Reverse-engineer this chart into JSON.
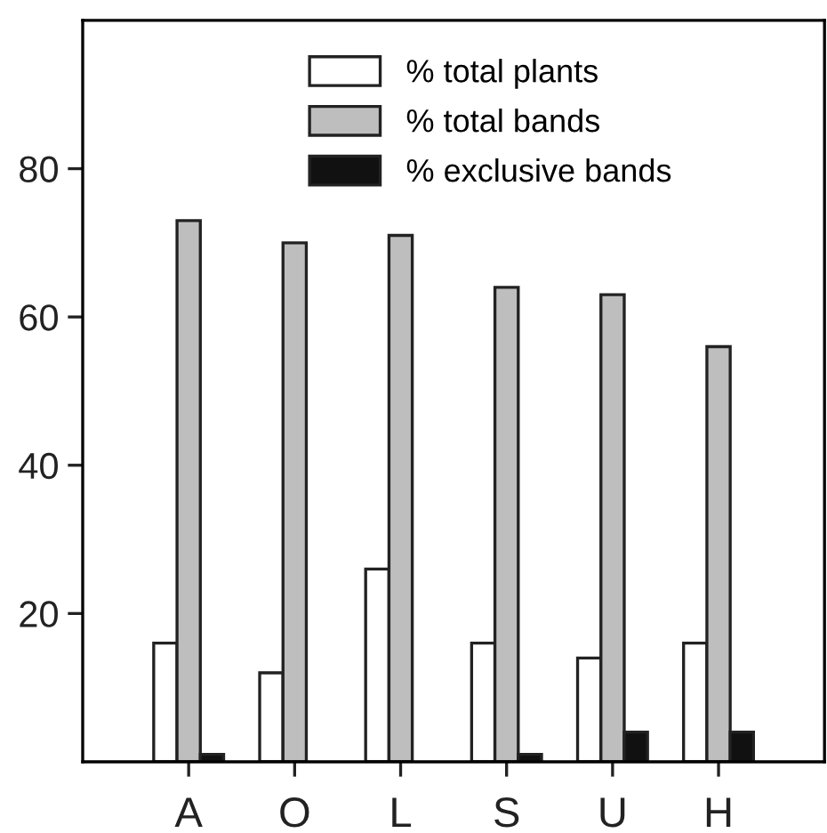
{
  "chart_data": {
    "type": "bar",
    "categories": [
      "A",
      "O",
      "L",
      "S",
      "U",
      "H"
    ],
    "series": [
      {
        "name": "% total plants",
        "color": "#ffffff",
        "values": [
          16,
          12,
          26,
          16,
          14,
          16
        ]
      },
      {
        "name": "% total bands",
        "color": "#bebebe",
        "values": [
          73,
          70,
          71,
          64,
          63,
          56
        ]
      },
      {
        "name": "% exclusive bands",
        "color": "#111111",
        "values": [
          1,
          null,
          null,
          1,
          4,
          4
        ]
      }
    ],
    "ylim": [
      0,
      100
    ],
    "yticks": [
      20,
      40,
      60,
      80
    ],
    "grid": false,
    "legend": "top"
  }
}
